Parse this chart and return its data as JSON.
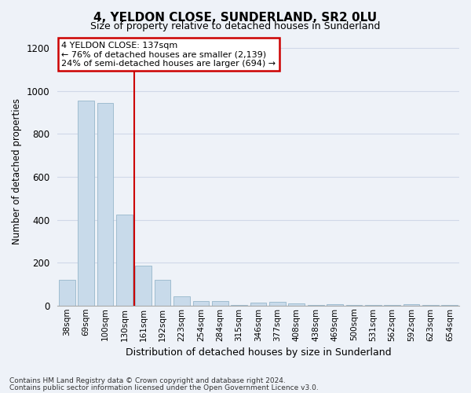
{
  "title": "4, YELDON CLOSE, SUNDERLAND, SR2 0LU",
  "subtitle": "Size of property relative to detached houses in Sunderland",
  "xlabel": "Distribution of detached houses by size in Sunderland",
  "ylabel": "Number of detached properties",
  "categories": [
    "38sqm",
    "69sqm",
    "100sqm",
    "130sqm",
    "161sqm",
    "192sqm",
    "223sqm",
    "254sqm",
    "284sqm",
    "315sqm",
    "346sqm",
    "377sqm",
    "408sqm",
    "438sqm",
    "469sqm",
    "500sqm",
    "531sqm",
    "562sqm",
    "592sqm",
    "623sqm",
    "654sqm"
  ],
  "values": [
    120,
    955,
    945,
    425,
    185,
    120,
    42,
    20,
    20,
    2,
    15,
    18,
    10,
    2,
    8,
    2,
    2,
    2,
    8,
    2,
    2
  ],
  "bar_color": "#c8daea",
  "bar_edge_color": "#a0bdd0",
  "grid_color": "#d0d8e8",
  "background_color": "#eef2f8",
  "vline_color": "#cc0000",
  "annotation_text": "4 YELDON CLOSE: 137sqm\n← 76% of detached houses are smaller (2,139)\n24% of semi-detached houses are larger (694) →",
  "annotation_box_color": "#ffffff",
  "annotation_box_edge_color": "#cc0000",
  "ylim": [
    0,
    1250
  ],
  "yticks": [
    0,
    200,
    400,
    600,
    800,
    1000,
    1200
  ],
  "footnote_line1": "Contains HM Land Registry data © Crown copyright and database right 2024.",
  "footnote_line2": "Contains public sector information licensed under the Open Government Licence v3.0."
}
